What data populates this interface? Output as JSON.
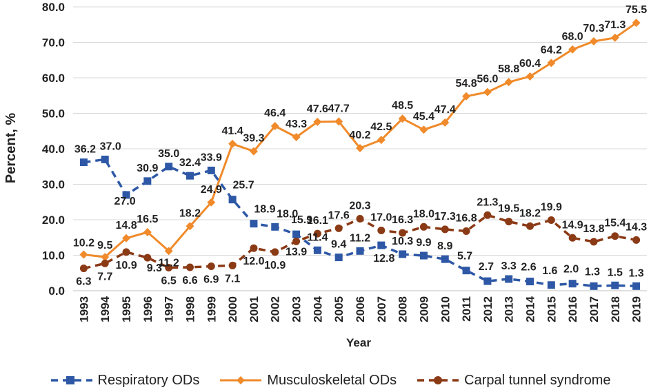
{
  "chart_data": {
    "type": "line",
    "title": "",
    "xlabel": "Year",
    "ylabel": "Percent, %",
    "ylim": [
      0,
      80
    ],
    "yticks": [
      "0.0",
      "10.0",
      "20.0",
      "30.0",
      "40.0",
      "50.0",
      "60.0",
      "70.0",
      "80.0"
    ],
    "categories": [
      "1993",
      "1994",
      "1995",
      "1996",
      "1997",
      "1998",
      "1999",
      "2000",
      "2001",
      "2002",
      "2003",
      "2004",
      "2005",
      "2006",
      "2007",
      "2008",
      "2009",
      "2010",
      "2011",
      "2012",
      "2013",
      "2014",
      "2015",
      "2016",
      "2017",
      "2018",
      "2019"
    ],
    "legend_position": "bottom",
    "series": [
      {
        "name": "Respiratory ODs",
        "color": "#2E58A6",
        "marker": "square",
        "line_style": "dashed",
        "values": [
          36.2,
          37.0,
          27.0,
          30.9,
          35.0,
          32.4,
          33.9,
          25.7,
          18.9,
          18.0,
          15.9,
          11.4,
          9.4,
          11.2,
          12.8,
          10.3,
          9.9,
          8.9,
          5.7,
          2.7,
          3.3,
          2.6,
          1.6,
          2.0,
          1.3,
          1.5,
          1.3
        ],
        "labels": [
          "36.2",
          "37.0",
          "27.0",
          "30.9",
          "35.0",
          "32.4",
          "33.9",
          "25.7",
          "18.9",
          "18.0",
          "15.9",
          "11.4",
          "9.4",
          "11.2",
          "12.8",
          "10.3",
          "9.9",
          "8.9",
          "5.7",
          "2.7",
          "3.3",
          "2.6",
          "1.6",
          "2.0",
          "1.3",
          "1.5",
          "1.3"
        ]
      },
      {
        "name": "Musculoskeletal ODs",
        "color": "#F08A2A",
        "marker": "diamond",
        "line_style": "solid",
        "values": [
          10.2,
          9.5,
          14.8,
          16.5,
          11.2,
          18.2,
          24.9,
          41.4,
          39.3,
          46.4,
          43.3,
          47.6,
          47.7,
          40.2,
          42.5,
          48.5,
          45.4,
          47.4,
          54.8,
          56.0,
          58.8,
          60.4,
          64.2,
          68.0,
          70.3,
          71.3,
          75.5
        ],
        "labels": [
          "10.2",
          "9.5",
          "14.8",
          "16.5",
          "11.2",
          "18.2",
          "24.9",
          "41.4",
          "39.3",
          "46.4",
          "43.3",
          "47.6",
          "47.7",
          "40.2",
          "42.5",
          "48.5",
          "45.4",
          "47.4",
          "54.8",
          "56.0",
          "58.8",
          "60.4",
          "64.2",
          "68.0",
          "70.3",
          "71.3",
          "75.5"
        ]
      },
      {
        "name": "Carpal tunnel syndrome",
        "color": "#8B3A16",
        "marker": "circle",
        "line_style": "dashed",
        "values": [
          6.3,
          7.7,
          10.9,
          9.3,
          6.5,
          6.6,
          6.9,
          7.1,
          12.0,
          10.9,
          13.9,
          16.1,
          17.6,
          20.3,
          17.0,
          16.3,
          18.0,
          17.3,
          16.8,
          21.3,
          19.5,
          18.2,
          19.9,
          14.9,
          13.8,
          15.4,
          14.3
        ],
        "labels": [
          "6.3",
          "7.7",
          "10.9",
          "9.3",
          "6.5",
          "6.6",
          "6.9",
          "7.1",
          "12.0",
          "10.9",
          "13.9",
          "16.1",
          "17.6",
          "20.3",
          "17.0",
          "16.3",
          "18.0",
          "17.3",
          "16.8",
          "21.3",
          "19.5",
          "18.2",
          "19.9",
          "14.9",
          "13.8",
          "15.4",
          "14.3"
        ]
      }
    ]
  }
}
